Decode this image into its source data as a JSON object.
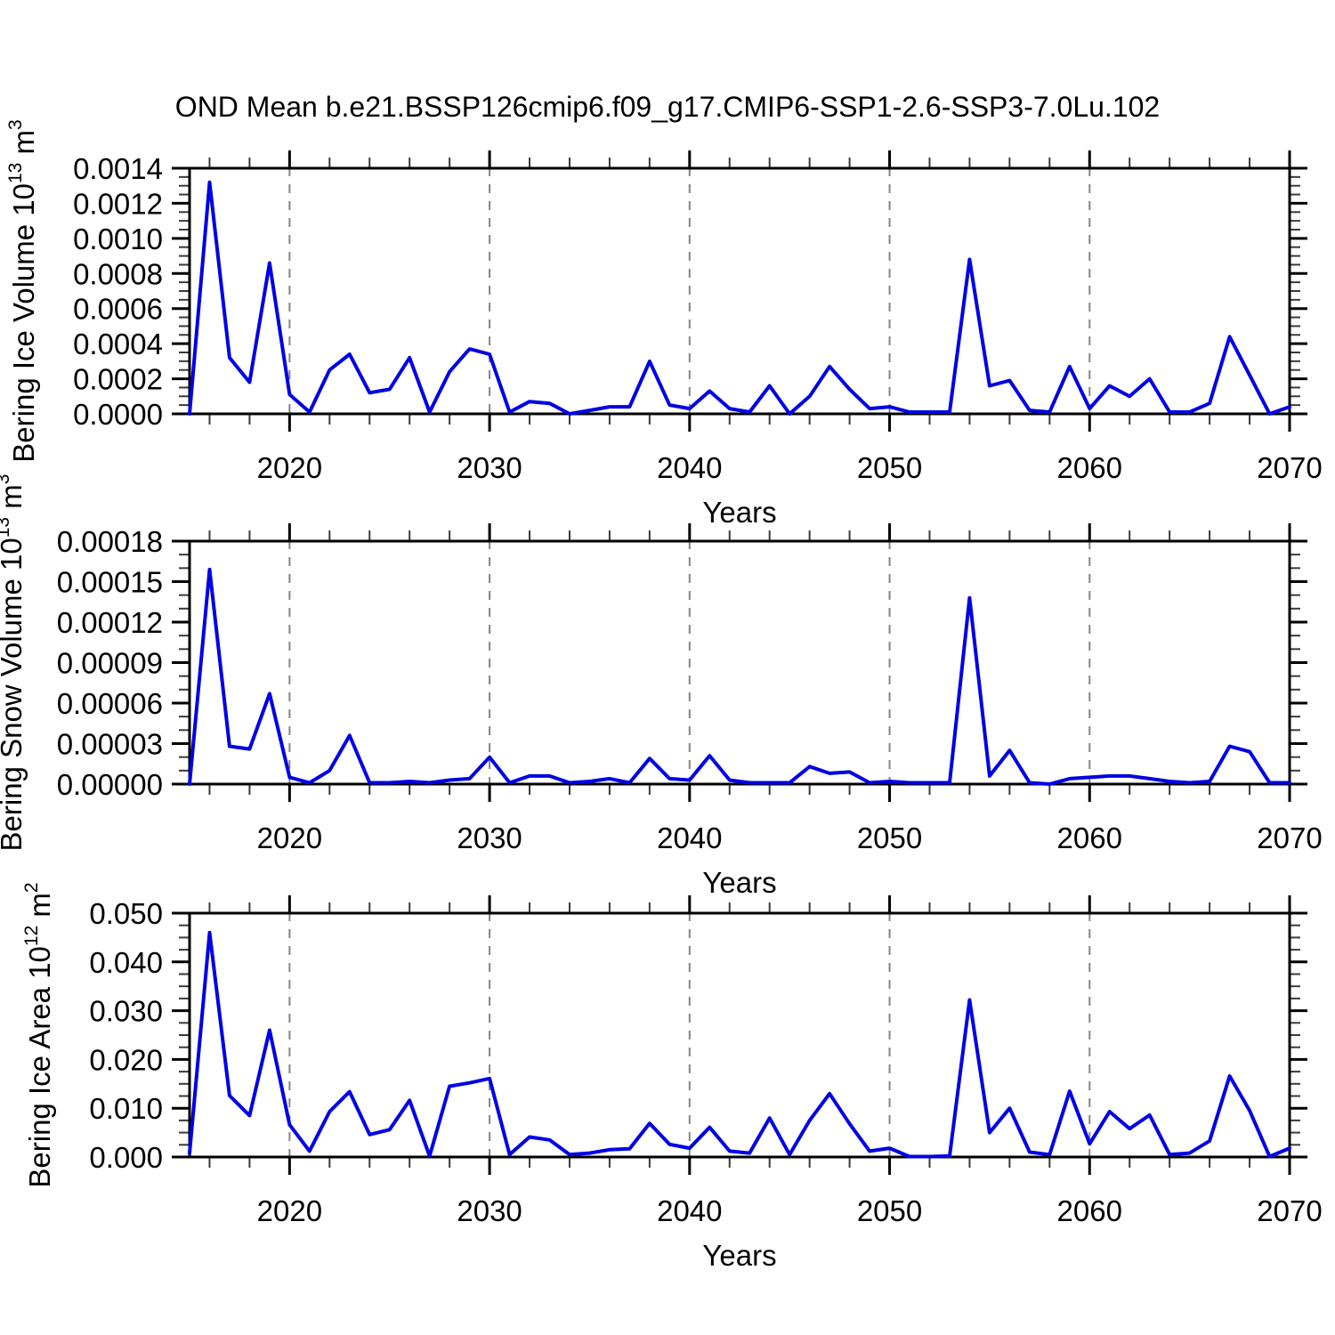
{
  "title": "OND Mean b.e21.BSSP126cmip6.f09_g17.CMIP6-SSP1-2.6-SSP3-7.0Lu.102",
  "colors": {
    "line": "#0000e6",
    "grid": "#858585",
    "axis": "#000000",
    "minor_tick": "#3a3a3a",
    "background": "#ffffff"
  },
  "x_axis": {
    "label": "Years",
    "range": [
      2015,
      2070
    ],
    "major_ticks": [
      2020,
      2030,
      2040,
      2050,
      2060,
      2070
    ],
    "tick_labels": [
      "2020",
      "2030",
      "2040",
      "2050",
      "2060",
      "2070"
    ],
    "minor_tick_step_years": 2,
    "dashed_gridline_years": [
      2020,
      2030,
      2040,
      2050,
      2060
    ]
  },
  "years": [
    2015,
    2016,
    2017,
    2018,
    2019,
    2020,
    2021,
    2022,
    2023,
    2024,
    2025,
    2026,
    2027,
    2028,
    2029,
    2030,
    2031,
    2032,
    2033,
    2034,
    2035,
    2036,
    2037,
    2038,
    2039,
    2040,
    2041,
    2042,
    2043,
    2044,
    2045,
    2046,
    2047,
    2048,
    2049,
    2050,
    2051,
    2052,
    2053,
    2054,
    2055,
    2056,
    2057,
    2058,
    2059,
    2060,
    2061,
    2062,
    2063,
    2064,
    2065,
    2066,
    2067,
    2068,
    2069,
    2070
  ],
  "chart_data": [
    {
      "type": "line",
      "name": "bering-ice-volume",
      "ylabel": "Bering Ice Volume 10^13 m^3",
      "ylabel_rich": [
        {
          "t": "Bering Ice Volume 10"
        },
        {
          "sup": "13"
        },
        {
          "t": " m"
        },
        {
          "sup": "3"
        }
      ],
      "xlabel": "Years",
      "ylim": [
        0,
        0.0014
      ],
      "ytick_step": 0.0002,
      "ytick_labels": [
        "0.0000",
        "0.0002",
        "0.0004",
        "0.0006",
        "0.0008",
        "0.0010",
        "0.0012",
        "0.0014"
      ],
      "y_minor_divisions": 4,
      "grid": "vertical-dashed-decades",
      "values": [
        0.0,
        0.00132,
        0.00032,
        0.00018,
        0.00086,
        0.00011,
        1e-05,
        0.00025,
        0.00034,
        0.00012,
        0.00014,
        0.00032,
        1e-05,
        0.00024,
        0.00037,
        0.00034,
        1e-05,
        7e-05,
        6e-05,
        0.0,
        2e-05,
        4e-05,
        4e-05,
        0.0003,
        5e-05,
        3e-05,
        0.00013,
        3e-05,
        1e-05,
        0.00016,
        0.0,
        0.0001,
        0.00027,
        0.00014,
        3e-05,
        4e-05,
        1e-05,
        1e-05,
        1e-05,
        0.00088,
        0.00016,
        0.00019,
        2e-05,
        1e-05,
        0.00027,
        3e-05,
        0.00016,
        0.0001,
        0.0002,
        1e-05,
        1e-05,
        6e-05,
        0.00044,
        0.00022,
        0.0,
        4e-05
      ]
    },
    {
      "type": "line",
      "name": "bering-snow-volume",
      "ylabel": "Bering Snow Volume 10^13 m^3",
      "ylabel_rich": [
        {
          "t": "Bering Snow Volume 10"
        },
        {
          "sup": "13"
        },
        {
          "t": " m"
        },
        {
          "sup": "3"
        }
      ],
      "xlabel": "Years",
      "ylim": [
        0,
        0.00018
      ],
      "ytick_step": 3e-05,
      "ytick_labels": [
        "0.00000",
        "0.00003",
        "0.00006",
        "0.00009",
        "0.00012",
        "0.00015",
        "0.00018"
      ],
      "y_minor_divisions": 3,
      "grid": "vertical-dashed-decades",
      "values": [
        0.0,
        0.000159,
        2.8e-05,
        2.6e-05,
        6.7e-05,
        5e-06,
        1e-06,
        1e-05,
        3.6e-05,
        1e-06,
        1e-06,
        2e-06,
        1e-06,
        3e-06,
        4e-06,
        2e-05,
        1e-06,
        6e-06,
        6e-06,
        1e-06,
        2e-06,
        4e-06,
        1e-06,
        1.9e-05,
        4e-06,
        3e-06,
        2.1e-05,
        3e-06,
        1e-06,
        1e-06,
        1e-06,
        1.3e-05,
        8e-06,
        9e-06,
        1e-06,
        2e-06,
        1e-06,
        1e-06,
        1e-06,
        0.000138,
        6e-06,
        2.5e-05,
        1e-06,
        0.0,
        4e-06,
        5e-06,
        6e-06,
        6e-06,
        4e-06,
        2e-06,
        1e-06,
        2e-06,
        2.8e-05,
        2.4e-05,
        1e-06,
        1e-06
      ]
    },
    {
      "type": "line",
      "name": "bering-ice-area",
      "ylabel": "Bering Ice Area 10^12 m^2",
      "ylabel_rich": [
        {
          "t": "Bering Ice Area 10"
        },
        {
          "sup": "12"
        },
        {
          "t": " m"
        },
        {
          "sup": "2"
        }
      ],
      "xlabel": "Years",
      "ylim": [
        0,
        0.05
      ],
      "ytick_step": 0.01,
      "ytick_labels": [
        "0.000",
        "0.010",
        "0.020",
        "0.030",
        "0.040",
        "0.050"
      ],
      "y_minor_divisions": 4,
      "grid": "vertical-dashed-decades",
      "values": [
        0.0008,
        0.046,
        0.0126,
        0.0085,
        0.026,
        0.0066,
        0.0012,
        0.0093,
        0.0134,
        0.0046,
        0.0056,
        0.0116,
        0.0002,
        0.0145,
        0.0152,
        0.0161,
        0.0005,
        0.0041,
        0.0035,
        0.0005,
        0.0008,
        0.0015,
        0.0017,
        0.0069,
        0.0026,
        0.0018,
        0.0061,
        0.0012,
        0.0008,
        0.008,
        0.0005,
        0.0075,
        0.013,
        0.0068,
        0.0012,
        0.0018,
        0.0001,
        0.0001,
        0.0002,
        0.0322,
        0.005,
        0.01,
        0.001,
        0.0005,
        0.0135,
        0.0027,
        0.0093,
        0.0058,
        0.0086,
        0.0005,
        0.0008,
        0.0033,
        0.0166,
        0.0095,
        0.0001,
        0.0018
      ]
    }
  ]
}
